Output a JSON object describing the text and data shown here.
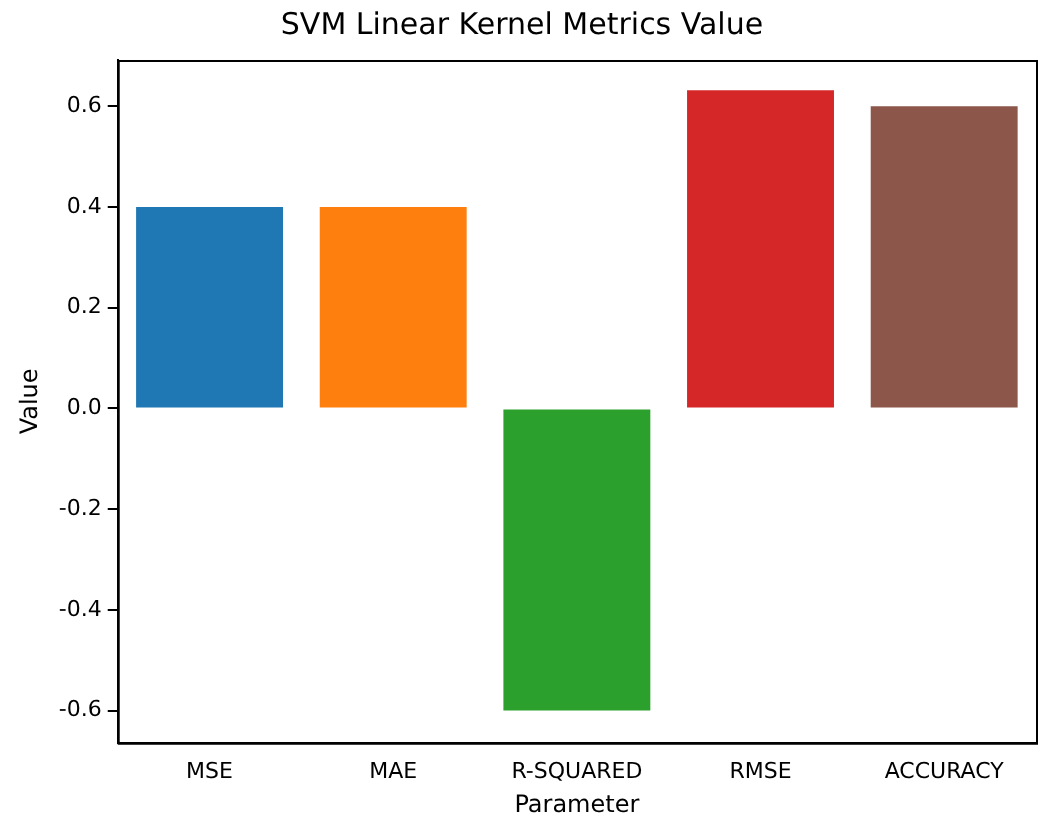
{
  "chart_data": {
    "type": "bar",
    "title": "SVM Linear Kernel Metrics Value",
    "xlabel": "Parameter",
    "ylabel": "Value",
    "categories": [
      "MSE",
      "MAE",
      "R-SQUARED",
      "RMSE",
      "ACCURACY"
    ],
    "values": [
      0.4,
      0.4,
      -0.6,
      0.632,
      0.6
    ],
    "colors": [
      "#1f77b4",
      "#ff7f0e",
      "#2ca02c",
      "#d62728",
      "#8c564b"
    ],
    "ylim": [
      -0.664,
      0.692
    ],
    "yticks": [
      -0.6,
      -0.4,
      -0.2,
      {
        "value": 0,
        "label": "0.0"
      },
      0.2,
      0.4,
      0.6
    ],
    "grid": false,
    "legend": false
  }
}
